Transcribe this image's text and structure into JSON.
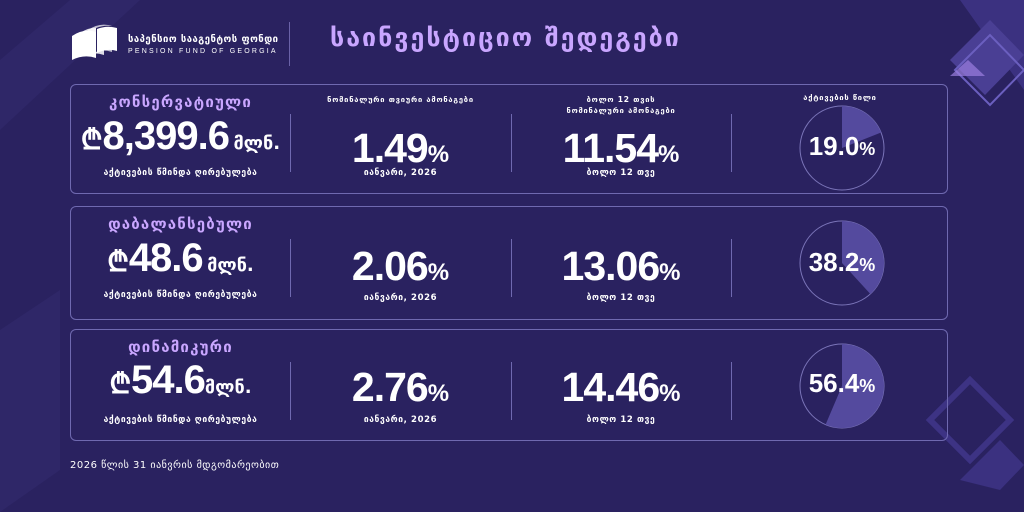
{
  "header": {
    "logo_ka": "საპენსიო სააგენტოს ფონდი",
    "logo_en": "PENSION FUND OF GEORGIA",
    "title": "საინვესტიციო შედეგები"
  },
  "labels": {
    "monthly_return": "ნომინალური თვიური ამონაგები",
    "annual_return_line1": "ბოლო 12 თვის",
    "annual_return_line2": "ნომინალური ამონაგები",
    "asset_share": "აქტივების წილი"
  },
  "colors": {
    "background": "#2a2260",
    "accent": "#c9a6ff",
    "card_border": "#6f69b0",
    "pie_fill": "#544a9e"
  },
  "funds": [
    {
      "name": "კონსერვატიული",
      "currency_symbol": "₾",
      "assets_value": "8,399.6",
      "assets_unit": "მლნ.",
      "assets_label": "აქტივების წმინდა ღირებულება",
      "monthly_value": "1.49",
      "monthly_unit": "%",
      "monthly_period": "იანვარი, 2026",
      "annual_value": "11.54",
      "annual_unit": "%",
      "annual_period": "ბოლო 12 თვე",
      "share_value": "19.0",
      "share_unit": "%",
      "share": 19.0
    },
    {
      "name": "დაბალანსებული",
      "currency_symbol": "₾",
      "assets_value": "48.6",
      "assets_unit": "მლნ.",
      "assets_label": "აქტივების წმინდა ღირებულება",
      "monthly_value": "2.06",
      "monthly_unit": "%",
      "monthly_period": "იანვარი, 2026",
      "annual_value": "13.06",
      "annual_unit": "%",
      "annual_period": "ბოლო 12 თვე",
      "share_value": "38.2",
      "share_unit": "%",
      "share": 38.2
    },
    {
      "name": "დინამიკური",
      "currency_symbol": "₾",
      "assets_value": "54.6",
      "assets_unit": "მლნ.",
      "assets_label": "აქტივების წმინდა ღირებულება",
      "monthly_value": "2.76",
      "monthly_unit": "%",
      "monthly_period": "იანვარი, 2026",
      "annual_value": "14.46",
      "annual_unit": "%",
      "annual_period": "ბოლო 12 თვე",
      "share_value": "56.4",
      "share_unit": "%",
      "share": 56.4
    }
  ],
  "footnote": "2026 წლის 31 იანვრის მდგომარეობით"
}
